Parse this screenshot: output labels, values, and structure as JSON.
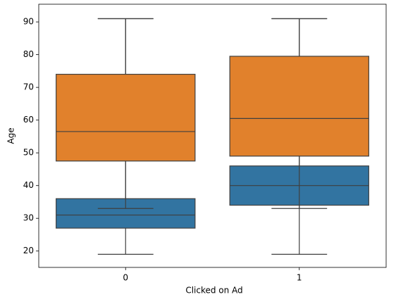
{
  "chart_data": {
    "type": "box",
    "xlabel": "Clicked on Ad",
    "ylabel": "Age",
    "categories": [
      "0",
      "1"
    ],
    "series": [
      {
        "color": "#3274a1",
        "boxes": [
          {
            "min": 19,
            "q1": 27,
            "median": 31,
            "q3": 36,
            "max": 91
          },
          {
            "min": 19,
            "q1": 34,
            "median": 40,
            "q3": 46,
            "max": 91
          }
        ]
      },
      {
        "color": "#e1812c",
        "boxes": [
          {
            "min": 33,
            "q1": 47.5,
            "median": 56.5,
            "q3": 74,
            "max": 91
          },
          {
            "min": 33,
            "q1": 49,
            "median": 60.5,
            "q3": 79.5,
            "max": 91
          }
        ]
      }
    ],
    "ylim": [
      15,
      95.4
    ],
    "yticks": [
      20,
      30,
      40,
      50,
      60,
      70,
      80,
      90
    ]
  }
}
